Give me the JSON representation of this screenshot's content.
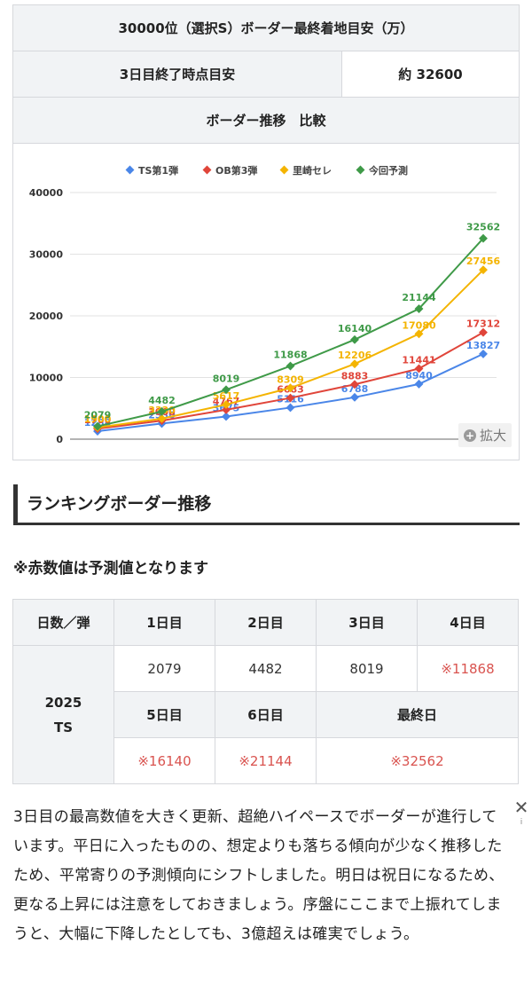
{
  "info_table": {
    "title": "30000位（選択S）ボーダー最終着地目安（万）",
    "row_label": "3日目終了時点目安",
    "row_value": "約 32600",
    "compare_title": "ボーダー推移　比較",
    "expand_label": "拡大"
  },
  "chart_data": {
    "type": "line",
    "x": [
      1,
      2,
      3,
      4,
      5,
      6,
      7
    ],
    "ylim": [
      0,
      40000
    ],
    "yticks": [
      "0",
      "10000",
      "20000",
      "30000",
      "40000"
    ],
    "grid": true,
    "legend_position": "top",
    "series": [
      {
        "name": "TS第1弾",
        "color": "#4a86e8",
        "values": [
          1288,
          2530,
          3675,
          5116,
          6788,
          8940,
          13827
        ]
      },
      {
        "name": "OB第3弾",
        "color": "#e0453a",
        "values": [
          1700,
          3000,
          4767,
          6683,
          8883,
          11441,
          17312
        ]
      },
      {
        "name": "里崎セレ",
        "color": "#f4b400",
        "values": [
          1900,
          3330,
          5617,
          8309,
          12206,
          17080,
          27456
        ]
      },
      {
        "name": "今回予測",
        "color": "#3f9a48",
        "values": [
          2079,
          4482,
          8019,
          11868,
          16140,
          21144,
          32562
        ]
      }
    ]
  },
  "section": {
    "heading": "ランキングボーダー推移",
    "note": "※赤数値は予測値となります"
  },
  "rank_table": {
    "header": [
      "日数／弾",
      "1日目",
      "2日目",
      "3日目",
      "4日目"
    ],
    "row_label_1": "2025",
    "row_label_2": "TS",
    "row1": [
      "2079",
      "4482",
      "8019",
      "※11868"
    ],
    "header2": [
      "5日目",
      "6日目",
      "最終日"
    ],
    "row2": [
      "※16140",
      "※21144",
      "※32562"
    ]
  },
  "body_text": "3日目の最高数値を大きく更新、超絶ハイペースでボーダーが進行しています。平日に入ったものの、想定よりも落ちる傾向が少なく推移したため、平常寄りの予測傾向にシフトしました。明日は祝日になるため、更なる上昇には注意をしておきましょう。序盤にここまで上振れてしまうと、大幅に下降したとしても、3億超えは確実でしょう。",
  "ad_close": {
    "icon": "close-icon",
    "info": "i"
  }
}
